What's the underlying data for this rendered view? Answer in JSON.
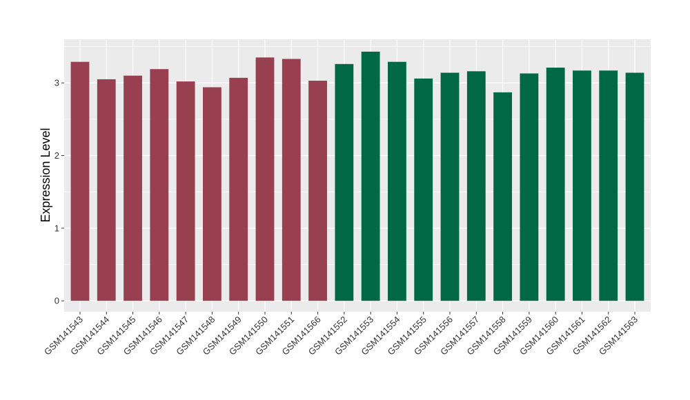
{
  "chart_data": {
    "type": "bar",
    "ylabel": "Expression Level",
    "xlabel": "",
    "ylim": [
      -0.15,
      3.6
    ],
    "yticks": [
      0,
      1,
      2,
      3
    ],
    "grid": true,
    "categories": [
      "GSM141543",
      "GSM141544",
      "GSM141545",
      "GSM141546",
      "GSM141547",
      "GSM141548",
      "GSM141549",
      "GSM141550",
      "GSM141551",
      "GSM141566",
      "GSM141552",
      "GSM141553",
      "GSM141554",
      "GSM141555",
      "GSM141556",
      "GSM141557",
      "GSM141558",
      "GSM141559",
      "GSM141560",
      "GSM141561",
      "GSM141562",
      "GSM141563"
    ],
    "values": [
      3.29,
      3.05,
      3.1,
      3.19,
      3.02,
      2.94,
      3.07,
      3.35,
      3.33,
      3.03,
      3.26,
      3.43,
      3.29,
      3.06,
      3.14,
      3.16,
      2.87,
      3.13,
      3.21,
      3.17,
      3.17,
      3.14
    ],
    "groups": [
      0,
      0,
      0,
      0,
      0,
      0,
      0,
      0,
      0,
      0,
      1,
      1,
      1,
      1,
      1,
      1,
      1,
      1,
      1,
      1,
      1,
      1
    ],
    "group_colors": [
      "#98404F",
      "#006845"
    ],
    "panel_color": "#EBEBEB",
    "grid_color": "#FFFFFF"
  }
}
